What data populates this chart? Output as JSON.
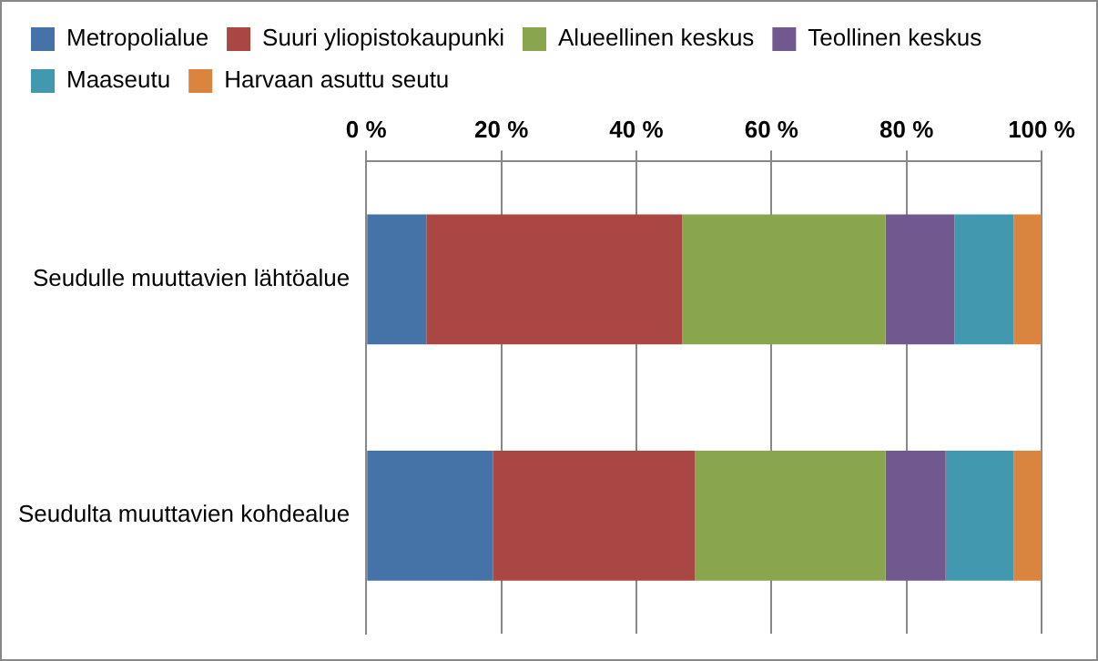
{
  "chart_data": {
    "type": "bar",
    "orientation": "horizontal",
    "stacked": true,
    "categories": [
      "Seudulle muuttavien lähtöalue",
      "Seudulta muuttavien kohdealue"
    ],
    "series": [
      {
        "name": "Metropolialue",
        "color": "#4572a7",
        "values": [
          8.9,
          18.8
        ]
      },
      {
        "name": "Suuri yliopistokaupunki",
        "color": "#aa4643",
        "values": [
          37.9,
          29.9
        ]
      },
      {
        "name": "Alueellinen keskus",
        "color": "#89a54e",
        "values": [
          30.1,
          28.2
        ]
      },
      {
        "name": "Teollinen keskus",
        "color": "#71588f",
        "values": [
          10.2,
          8.9
        ]
      },
      {
        "name": "Maaseutu",
        "color": "#4198af",
        "values": [
          8.8,
          10.1
        ]
      },
      {
        "name": "Harvaan asuttu seutu",
        "color": "#db843d",
        "values": [
          4.1,
          4.1
        ]
      }
    ],
    "xlim": [
      0,
      100
    ],
    "xticks": [
      {
        "value": 0,
        "label": "0 %"
      },
      {
        "value": 20,
        "label": "20 %"
      },
      {
        "value": 40,
        "label": "40 %"
      },
      {
        "value": 60,
        "label": "60 %"
      },
      {
        "value": 80,
        "label": "80 %"
      },
      {
        "value": 100,
        "label": "100 %"
      }
    ],
    "grid": "x",
    "legend": "top"
  }
}
